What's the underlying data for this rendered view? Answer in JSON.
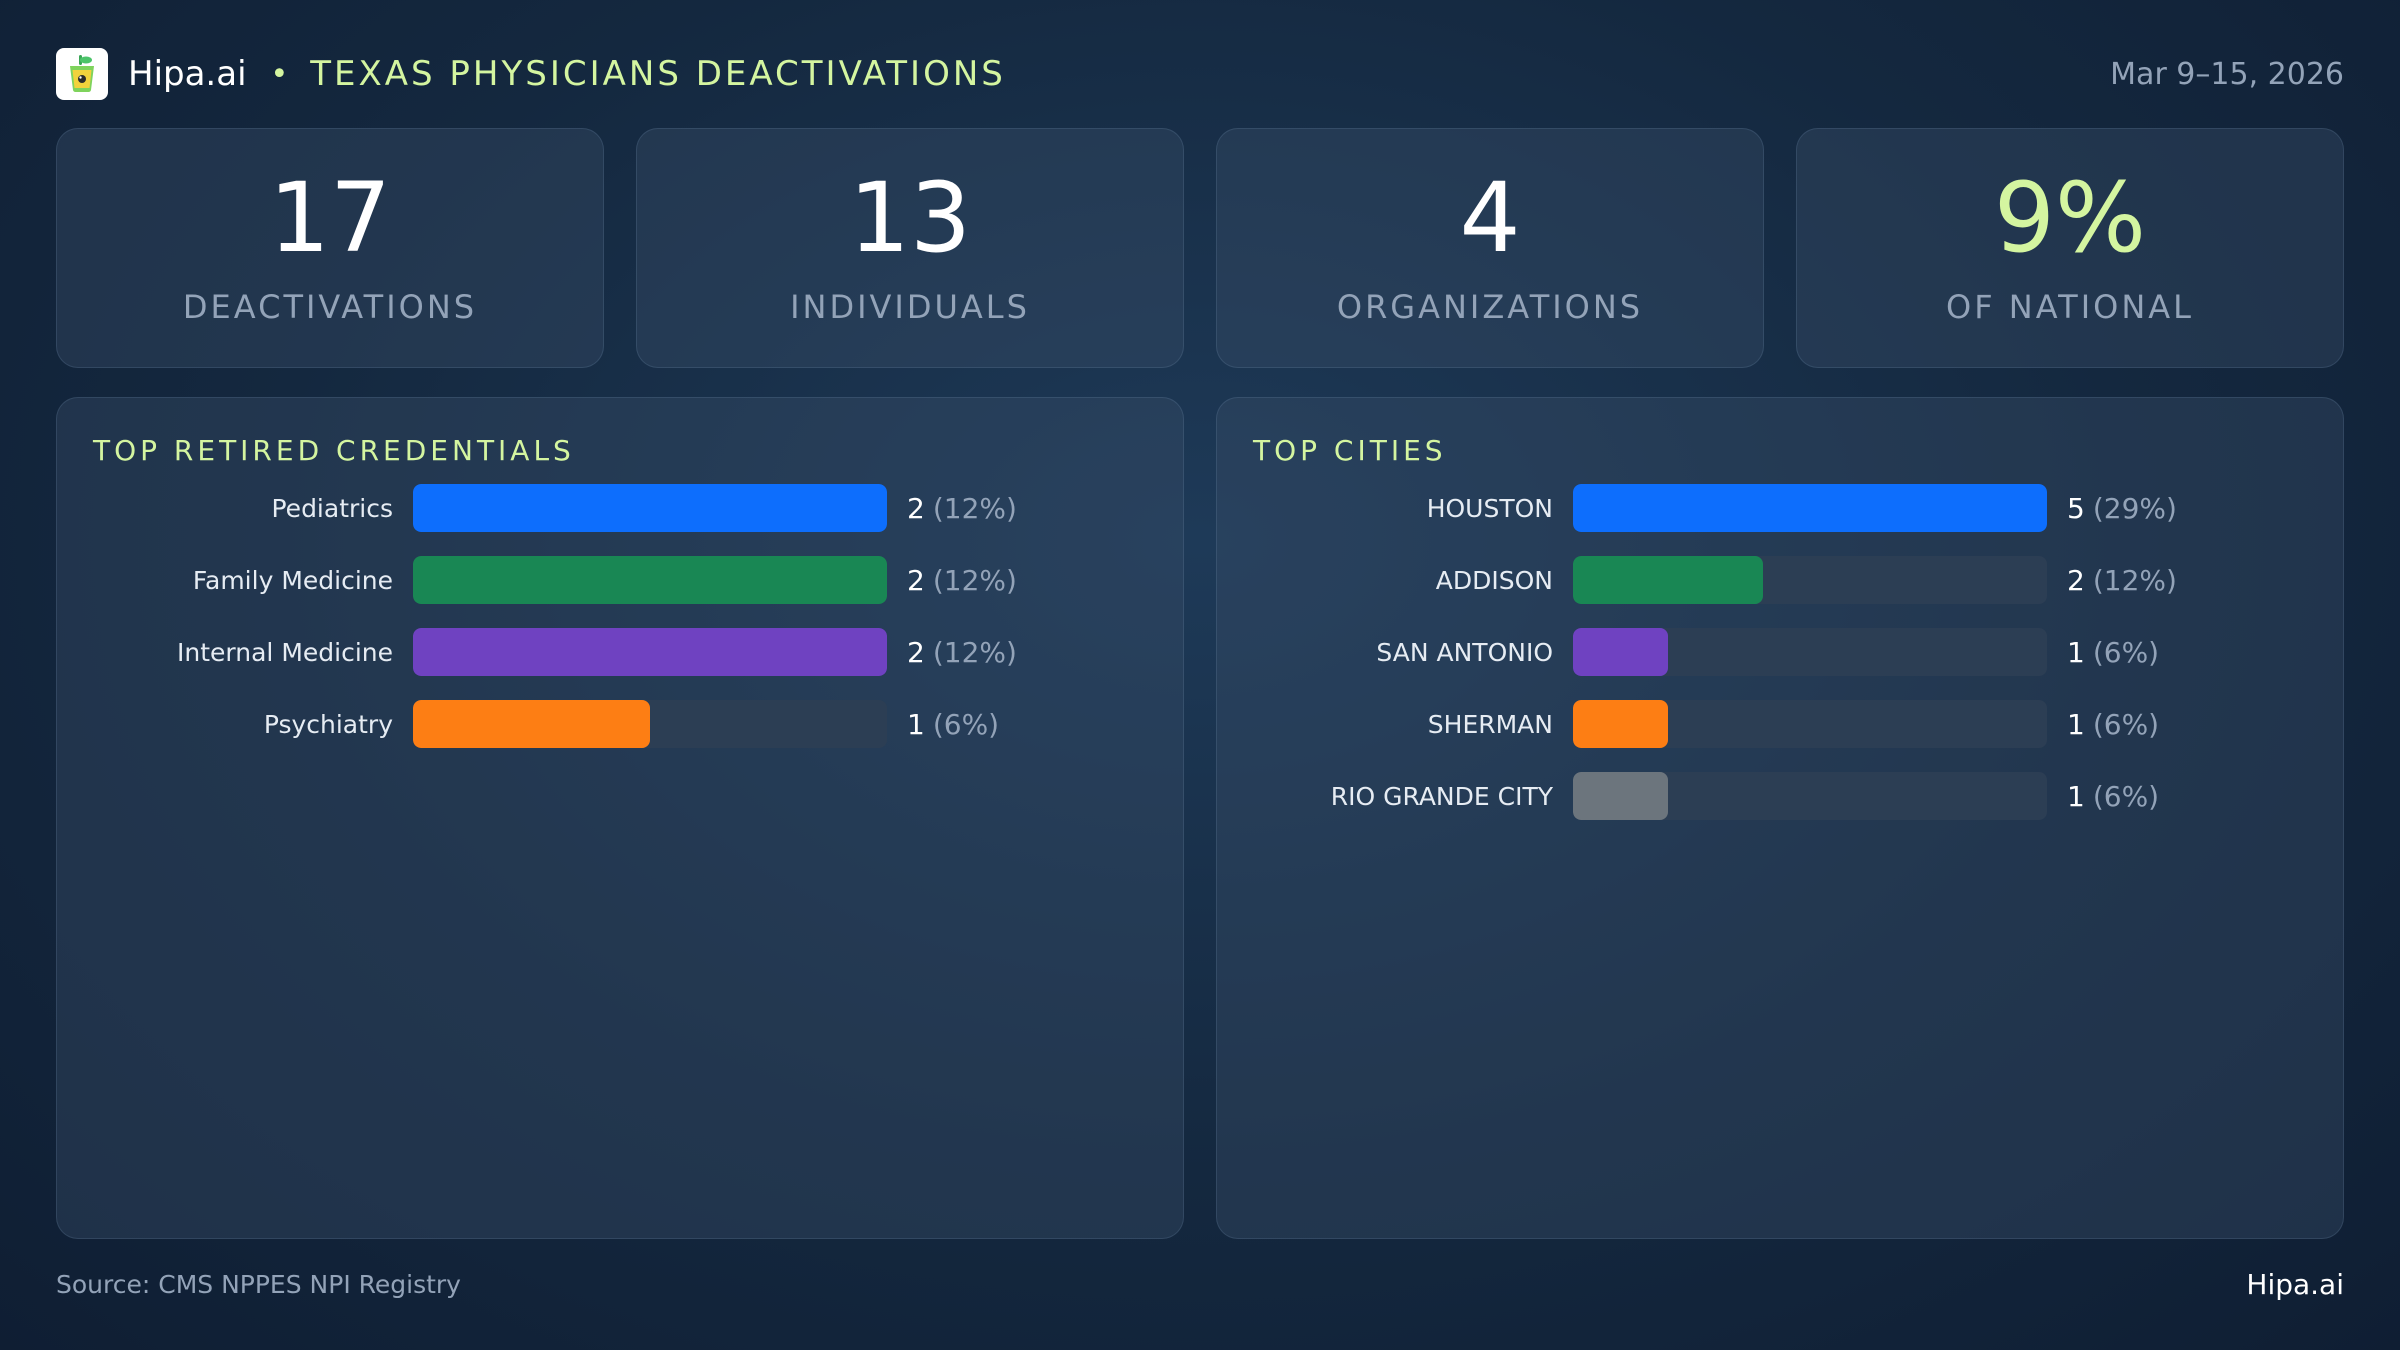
{
  "header": {
    "brand": "Hipa.ai",
    "separator": "•",
    "title": "TEXAS PHYSICIANS DEACTIVATIONS",
    "date_range": "Mar 9–15, 2026",
    "logo_icon": "cup-icon"
  },
  "kpis": [
    {
      "value": "17",
      "label": "DEACTIVATIONS"
    },
    {
      "value": "13",
      "label": "INDIVIDUALS"
    },
    {
      "value": "4",
      "label": "ORGANIZATIONS"
    },
    {
      "value": "9%",
      "label": "OF NATIONAL"
    }
  ],
  "colors": {
    "accent": "#d4f5a0",
    "blue": "#0d6efd",
    "green": "#198754",
    "purple": "#6f42c1",
    "orange": "#fd7e14",
    "gray": "#6c757d",
    "track": "#2c3e54"
  },
  "chart_data": [
    {
      "type": "bar",
      "orientation": "horizontal",
      "title": "TOP RETIRED CREDENTIALS",
      "categories": [
        "Pediatrics",
        "Family Medicine",
        "Internal Medicine",
        "Psychiatry"
      ],
      "values": [
        2,
        2,
        2,
        1
      ],
      "percent_labels": [
        "(12%)",
        "(12%)",
        "(12%)",
        "(6%)"
      ],
      "colors": [
        "#0d6efd",
        "#198754",
        "#6f42c1",
        "#fd7e14"
      ],
      "xlim": [
        0,
        2
      ],
      "grid": false
    },
    {
      "type": "bar",
      "orientation": "horizontal",
      "title": "TOP CITIES",
      "categories": [
        "HOUSTON",
        "ADDISON",
        "SAN ANTONIO",
        "SHERMAN",
        "RIO GRANDE CITY"
      ],
      "values": [
        5,
        2,
        1,
        1,
        1
      ],
      "percent_labels": [
        "(29%)",
        "(12%)",
        "(6%)",
        "(6%)",
        "(6%)"
      ],
      "colors": [
        "#0d6efd",
        "#198754",
        "#6f42c1",
        "#fd7e14",
        "#6c757d"
      ],
      "xlim": [
        0,
        5
      ],
      "grid": false
    }
  ],
  "footer": {
    "source": "Source: CMS NPPES NPI Registry",
    "brand": "Hipa.ai"
  }
}
